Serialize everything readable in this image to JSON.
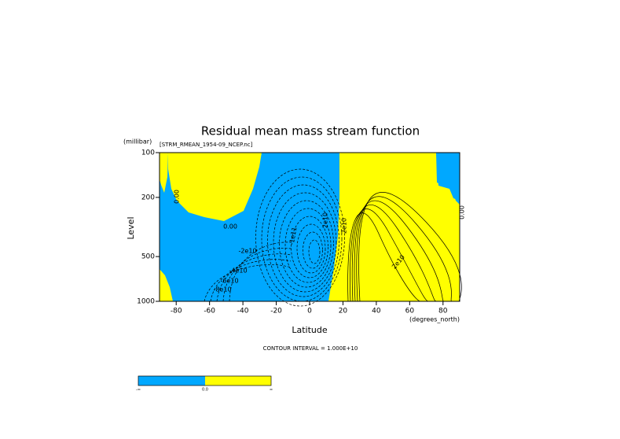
{
  "chart_data": {
    "type": "contour",
    "title": "Residual mean mass stream function",
    "subtitle": "[STRM_RMEAN_1954-09_NCEP.nc]",
    "y_label": "Level",
    "y_units": "(millibar)",
    "x_label": "Latitude",
    "x_units": "(degrees_north)",
    "xlim": [
      -90,
      90
    ],
    "xticks": [
      -80,
      -60,
      -40,
      -20,
      0,
      20,
      40,
      60,
      80
    ],
    "ylim": [
      1000,
      100
    ],
    "yticks": [
      100,
      200,
      500,
      1000
    ],
    "ylog": true,
    "negative_color": "#00a8ff",
    "positive_color": "#ffff00",
    "contour_labels": [
      "0.00",
      "0.00",
      "-2e10",
      "-4e10",
      "-6e10",
      "-8e10",
      "-1e11",
      "2e10",
      "2e10",
      "2e10",
      "0.00"
    ],
    "footnote": "CONTOUR INTERVAL = 1.000E+10",
    "colorbar_labels": [
      "-∞",
      "0.0",
      "∞"
    ]
  }
}
